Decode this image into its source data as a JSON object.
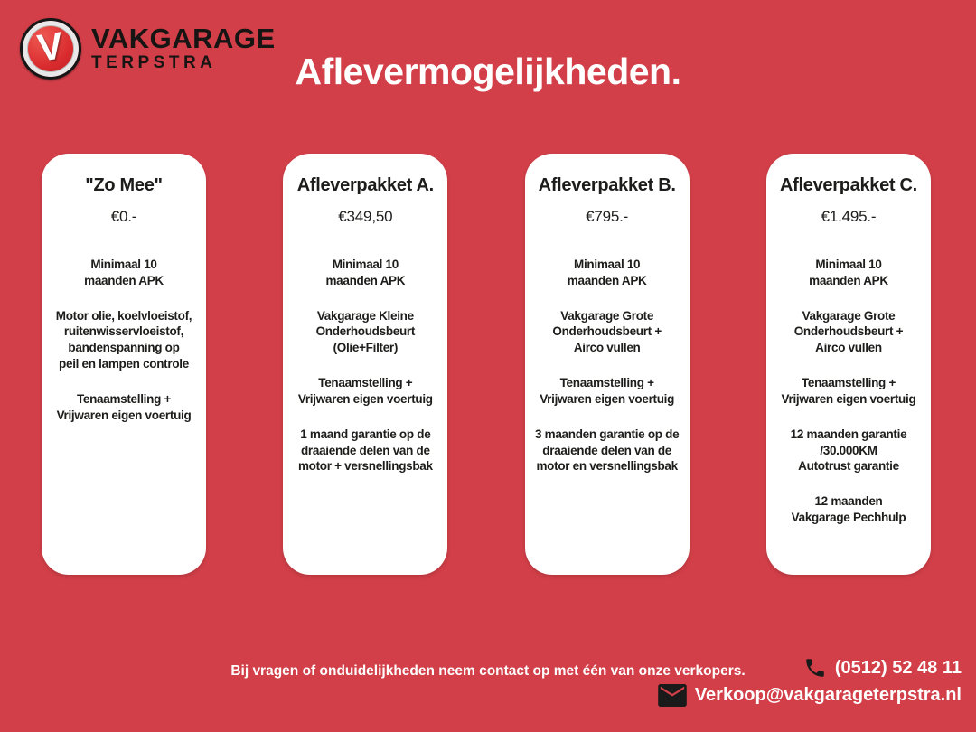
{
  "colors": {
    "background": "#d23f48",
    "card_background": "#ffffff",
    "card_text": "#1d1d1b",
    "light_text": "#ffffff",
    "icon_dark": "#1a1a1a",
    "logo_red": "#d92b2e"
  },
  "logo": {
    "initial": "V",
    "brand": "VAKGARAGE",
    "sub": "TERPSTRA"
  },
  "header": {
    "title": "Aflevermogelijkheden."
  },
  "cards": [
    {
      "name": "\"Zo Mee\"",
      "price": "€0.-",
      "features": [
        "Minimaal 10\nmaanden APK",
        "Motor olie, koelvloeistof,\nruitenwisservloeistof,\nbandenspanning op\npeil en lampen controle",
        "Tenaamstelling +\nVrijwaren eigen voertuig"
      ]
    },
    {
      "name": "Afleverpakket A.",
      "price": "€349,50",
      "features": [
        "Minimaal 10\nmaanden APK",
        "Vakgarage Kleine\nOnderhoudsbeurt\n(Olie+Filter)",
        "Tenaamstelling +\nVrijwaren eigen voertuig",
        "1 maand garantie op de\ndraaiende delen van de\nmotor + versnellingsbak"
      ]
    },
    {
      "name": "Afleverpakket B.",
      "price": "€795.-",
      "features": [
        "Minimaal 10\nmaanden APK",
        "Vakgarage Grote\nOnderhoudsbeurt +\nAirco vullen",
        "Tenaamstelling +\nVrijwaren eigen voertuig",
        "3 maanden garantie op de\ndraaiende delen van de\nmotor en versnellingsbak"
      ]
    },
    {
      "name": "Afleverpakket C.",
      "price": "€1.495.-",
      "features": [
        "Minimaal 10\nmaanden APK",
        "Vakgarage Grote\nOnderhoudsbeurt +\nAirco vullen",
        "Tenaamstelling +\nVrijwaren eigen voertuig",
        "12 maanden garantie\n/30.000KM\nAutotrust garantie",
        "12 maanden\nVakgarage Pechhulp"
      ]
    }
  ],
  "footer": {
    "note": "Bij vragen of onduidelijkheden neem contact op met één van onze verkopers.",
    "phone": "(0512) 52 48 11",
    "email": "Verkoop@vakgarageterpstra.nl"
  }
}
